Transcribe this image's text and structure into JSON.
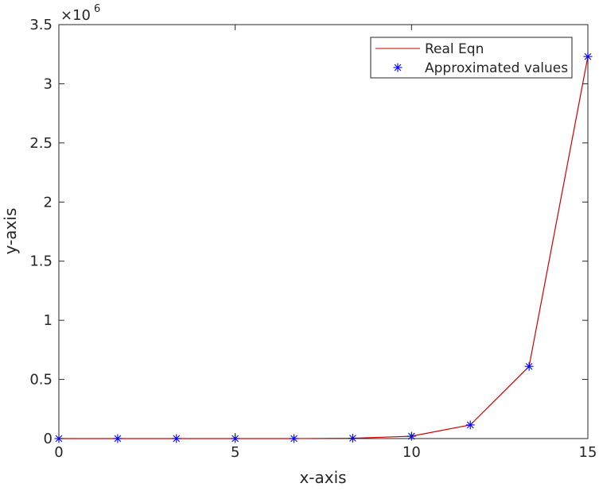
{
  "chart_data": {
    "type": "line",
    "xlabel": "x-axis",
    "ylabel": "y-axis",
    "xlim": [
      0,
      15
    ],
    "ylim": [
      0,
      3500000
    ],
    "x_ticks": [
      0,
      5,
      10,
      15
    ],
    "x_tick_labels": [
      "0",
      "5",
      "10",
      "15"
    ],
    "y_ticks": [
      0,
      500000,
      1000000,
      1500000,
      2000000,
      2500000,
      3000000,
      3500000
    ],
    "y_tick_labels": [
      "0",
      "0.5",
      "1",
      "1.5",
      "2",
      "2.5",
      "3",
      "3.5"
    ],
    "y_exponent": {
      "base": "×10",
      "power": "6"
    },
    "grid": false,
    "legend_position": "top-right",
    "series": [
      {
        "name": "Real Eqn",
        "style": "line",
        "color": "#cc0000",
        "x": [
          0,
          1.667,
          3.333,
          5,
          6.667,
          8.333,
          10,
          11.667,
          13.333,
          15
        ],
        "y": [
          0,
          0,
          0,
          0,
          0,
          3000,
          20000,
          115000,
          610000,
          3230000
        ]
      },
      {
        "name": "Approximated values",
        "style": "marker",
        "marker": "asterisk",
        "color": "#0000ff",
        "x": [
          0,
          1.667,
          3.333,
          5,
          6.667,
          8.333,
          10,
          11.667,
          13.333,
          15
        ],
        "y": [
          0,
          0,
          0,
          0,
          0,
          3000,
          20000,
          115000,
          610000,
          3230000
        ]
      }
    ]
  }
}
